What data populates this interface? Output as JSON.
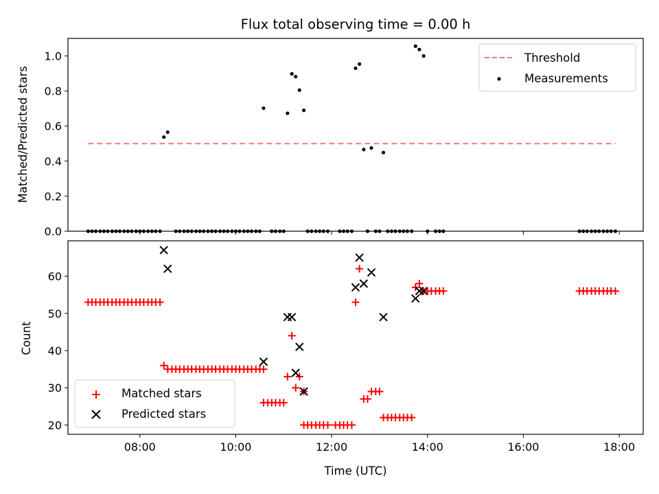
{
  "chart_data": [
    {
      "type": "scatter",
      "title": "Flux total observing time = 0.00 h",
      "xlabel": "",
      "ylabel": "Matched/Predicted stars",
      "x_unit": "hours (UTC)",
      "xlim": [
        6.5,
        18.5
      ],
      "ylim": [
        0.0,
        1.1
      ],
      "yticks": [
        0.0,
        0.2,
        0.4,
        0.6,
        0.8,
        1.0
      ],
      "ytick_labels": [
        "0.0",
        "0.2",
        "0.4",
        "0.6",
        "0.8",
        "1.0"
      ],
      "xtick_labels_shown": false,
      "grid": false,
      "legend_position": "top-right",
      "series": [
        {
          "name": "Threshold",
          "style": "dashed-line",
          "color": "#ff7777",
          "x": [
            6.92,
            17.92
          ],
          "y": [
            0.5,
            0.5
          ]
        },
        {
          "name": "Measurements",
          "style": "dot",
          "color": "#000000",
          "x": [
            6.92,
            7.0,
            7.08,
            7.17,
            7.25,
            7.33,
            7.42,
            7.5,
            7.58,
            7.67,
            7.75,
            7.83,
            7.92,
            8.0,
            8.08,
            8.17,
            8.25,
            8.33,
            8.42,
            8.5,
            8.58,
            8.75,
            8.83,
            8.92,
            9.0,
            9.08,
            9.17,
            9.25,
            9.33,
            9.42,
            9.5,
            9.58,
            9.67,
            9.75,
            9.83,
            9.92,
            10.0,
            10.08,
            10.17,
            10.25,
            10.33,
            10.42,
            10.5,
            10.58,
            10.75,
            10.83,
            10.92,
            11.0,
            11.08,
            11.17,
            11.25,
            11.33,
            11.42,
            11.5,
            11.58,
            11.67,
            11.75,
            11.83,
            11.92,
            12.17,
            12.25,
            12.33,
            12.42,
            12.5,
            12.58,
            12.67,
            12.83,
            12.75,
            12.92,
            13.0,
            13.08,
            13.17,
            13.25,
            13.33,
            13.42,
            13.5,
            13.58,
            13.67,
            13.75,
            13.83,
            13.92,
            14.0,
            14.17,
            14.25,
            14.33,
            17.17,
            17.25,
            17.33,
            17.42,
            17.5,
            17.58,
            17.67,
            17.75,
            17.83,
            17.92
          ],
          "y": [
            0,
            0,
            0,
            0,
            0,
            0,
            0,
            0,
            0,
            0,
            0,
            0,
            0,
            0,
            0,
            0,
            0,
            0,
            0,
            0.537,
            0.565,
            0,
            0,
            0,
            0,
            0,
            0,
            0,
            0,
            0,
            0,
            0,
            0,
            0,
            0,
            0,
            0,
            0,
            0,
            0,
            0,
            0,
            0,
            0.702,
            0,
            0,
            0,
            0,
            0.673,
            0.898,
            0.882,
            0.805,
            0.69,
            0,
            0,
            0,
            0,
            0,
            0,
            0,
            0,
            0,
            0,
            0.93,
            0.954,
            0.466,
            0.475,
            0,
            0,
            0,
            0.449,
            0,
            0,
            0,
            0,
            0,
            0,
            0,
            1.056,
            1.037,
            1.0,
            0,
            0,
            0,
            0,
            0,
            0,
            0,
            0,
            0,
            0,
            0,
            0,
            0,
            0
          ]
        }
      ]
    },
    {
      "type": "scatter",
      "title": "",
      "xlabel": "Time (UTC)",
      "ylabel": "Count",
      "x_unit": "hours (UTC)",
      "xlim": [
        6.5,
        18.5
      ],
      "ylim": [
        17.5,
        69.5
      ],
      "xticks": [
        8,
        10,
        12,
        14,
        16,
        18
      ],
      "xtick_labels": [
        "08:00",
        "10:00",
        "12:00",
        "14:00",
        "16:00",
        "18:00"
      ],
      "yticks": [
        20,
        30,
        40,
        50,
        60
      ],
      "ytick_labels": [
        "20",
        "30",
        "40",
        "50",
        "60"
      ],
      "grid": false,
      "legend_position": "bottom-left",
      "series": [
        {
          "name": "Matched stars",
          "marker": "plus",
          "color": "#ff0000",
          "x": [
            6.92,
            7.0,
            7.08,
            7.17,
            7.25,
            7.33,
            7.42,
            7.5,
            7.58,
            7.67,
            7.75,
            7.83,
            7.92,
            8.0,
            8.08,
            8.17,
            8.25,
            8.33,
            8.42,
            8.5,
            8.58,
            8.67,
            8.75,
            8.83,
            8.92,
            9.0,
            9.08,
            9.17,
            9.25,
            9.33,
            9.42,
            9.5,
            9.58,
            9.67,
            9.75,
            9.83,
            9.92,
            10.0,
            10.08,
            10.17,
            10.25,
            10.33,
            10.42,
            10.5,
            10.58,
            10.58,
            10.67,
            10.75,
            10.83,
            10.92,
            11.0,
            11.08,
            11.17,
            11.25,
            11.33,
            11.42,
            11.42,
            11.5,
            11.58,
            11.67,
            11.75,
            11.83,
            11.92,
            12.08,
            12.17,
            12.25,
            12.33,
            12.42,
            12.5,
            12.58,
            12.67,
            12.75,
            12.83,
            12.92,
            13.0,
            13.08,
            13.17,
            13.25,
            13.33,
            13.42,
            13.5,
            13.58,
            13.67,
            13.75,
            13.83,
            13.92,
            14.0,
            14.08,
            14.17,
            14.25,
            14.33,
            17.17,
            17.25,
            17.33,
            17.42,
            17.5,
            17.58,
            17.67,
            17.75,
            17.83,
            17.92
          ],
          "y": [
            53,
            53,
            53,
            53,
            53,
            53,
            53,
            53,
            53,
            53,
            53,
            53,
            53,
            53,
            53,
            53,
            53,
            53,
            53,
            36,
            35,
            35,
            35,
            35,
            35,
            35,
            35,
            35,
            35,
            35,
            35,
            35,
            35,
            35,
            35,
            35,
            35,
            35,
            35,
            35,
            35,
            35,
            35,
            35,
            35,
            26,
            26,
            26,
            26,
            26,
            26,
            33,
            44,
            30,
            33,
            29,
            20,
            20,
            20,
            20,
            20,
            20,
            20,
            20,
            20,
            20,
            20,
            20,
            53,
            62,
            27,
            27,
            29,
            29,
            29,
            22,
            22,
            22,
            22,
            22,
            22,
            22,
            22,
            57,
            58,
            56,
            56,
            56,
            56,
            56,
            56,
            56,
            56,
            56,
            56,
            56,
            56,
            56,
            56,
            56,
            56
          ]
        },
        {
          "name": "Predicted stars",
          "marker": "x",
          "color": "#000000",
          "x": [
            8.5,
            8.58,
            10.58,
            11.08,
            11.17,
            11.25,
            11.33,
            11.42,
            12.5,
            12.58,
            12.67,
            12.83,
            13.08,
            13.75,
            13.83,
            13.92
          ],
          "y": [
            67,
            62,
            37,
            49,
            49,
            34,
            41,
            29,
            57,
            65,
            58,
            61,
            49,
            54,
            56,
            56
          ]
        }
      ]
    }
  ]
}
